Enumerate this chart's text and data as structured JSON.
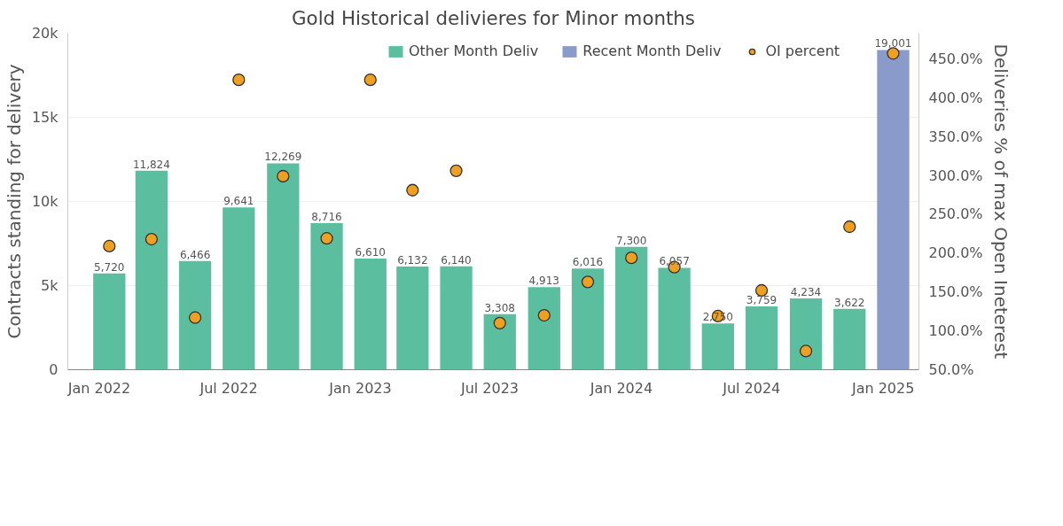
{
  "chart_data": {
    "type": "bar",
    "title": "Gold Historical delivieres for Minor months",
    "ylabel": "Contracts standing for delivery",
    "y2label": "Deliveries % of max Open Ineterest",
    "x": [
      "2022-01-15",
      "2022-03-15",
      "2022-05-15",
      "2022-07-15",
      "2022-09-15",
      "2022-11-15",
      "2023-01-15",
      "2023-03-15",
      "2023-05-15",
      "2023-07-15",
      "2023-09-15",
      "2023-11-15",
      "2024-01-15",
      "2024-03-15",
      "2024-05-15",
      "2024-07-15",
      "2024-09-15",
      "2024-11-15",
      "2025-01-15"
    ],
    "series": [
      {
        "name": "Other Month Deliv",
        "color": "#5bbf9f",
        "values": [
          5720,
          11824,
          6466,
          9641,
          12269,
          8716,
          6610,
          6132,
          6140,
          3308,
          4913,
          6016,
          7300,
          6057,
          2750,
          3759,
          4234,
          3622,
          null
        ],
        "value_labels": [
          "5,720",
          "11,824",
          "6,466",
          "9,641",
          "12,269",
          "8,716",
          "6,610",
          "6,132",
          "6,140",
          "3,308",
          "4,913",
          "6,016",
          "7,300",
          "6,057",
          "2,750",
          "3,759",
          "4,234",
          "3,622",
          null
        ]
      },
      {
        "name": "Recent Month Deliv",
        "color": "#8a9bcb",
        "values": [
          null,
          null,
          null,
          null,
          null,
          null,
          null,
          null,
          null,
          null,
          null,
          null,
          null,
          null,
          null,
          null,
          null,
          null,
          19001
        ],
        "value_labels": [
          null,
          null,
          null,
          null,
          null,
          null,
          null,
          null,
          null,
          null,
          null,
          null,
          null,
          null,
          null,
          null,
          null,
          null,
          "19,001"
        ]
      },
      {
        "name": "OI percent",
        "type": "scatter",
        "axis": "y2",
        "color": "#f0a020",
        "marker": "circle",
        "values": [
          209,
          218,
          117,
          423,
          299,
          219,
          423,
          281,
          306,
          110,
          120,
          163,
          194,
          182,
          119,
          152,
          74,
          234,
          457
        ]
      }
    ],
    "xlim": [
      "2021-11-18",
      "2025-02-20"
    ],
    "xticks": [
      {
        "value": "2022-01",
        "label": "Jan 2022"
      },
      {
        "value": "2022-07",
        "label": "Jul 2022"
      },
      {
        "value": "2023-01",
        "label": "Jan 2023"
      },
      {
        "value": "2023-07",
        "label": "Jul 2023"
      },
      {
        "value": "2024-01",
        "label": "Jan 2024"
      },
      {
        "value": "2024-07",
        "label": "Jul 2024"
      },
      {
        "value": "2025-01",
        "label": "Jan 2025"
      }
    ],
    "ylim": [
      0,
      20000
    ],
    "yticks": [
      0,
      {
        "value": 5000,
        "label": "5k"
      },
      {
        "value": 10000,
        "label": "10k"
      },
      {
        "value": 15000,
        "label": "15k"
      },
      {
        "value": 20000,
        "label": "20k"
      }
    ],
    "y2lim": [
      50,
      483
    ],
    "y2ticks": [
      {
        "value": 50,
        "label": "50.0%"
      },
      {
        "value": 100,
        "label": "100.0%"
      },
      {
        "value": 150,
        "label": "150.0%"
      },
      {
        "value": 200,
        "label": "200.0%"
      },
      {
        "value": 250,
        "label": "250.0%"
      },
      {
        "value": 300,
        "label": "300.0%"
      },
      {
        "value": 350,
        "label": "350.0%"
      },
      {
        "value": 400,
        "label": "400.0%"
      },
      {
        "value": 450,
        "label": "450.0%"
      }
    ],
    "grid": "y",
    "legend": "top"
  }
}
